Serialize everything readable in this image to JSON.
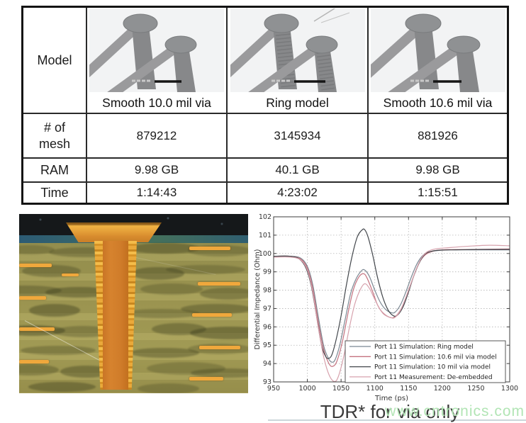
{
  "table": {
    "row_labels": {
      "model": "Model",
      "mesh": "# of\nmesh",
      "ram": "RAM",
      "time": "Time"
    },
    "columns": [
      {
        "caption": "Smooth 10.0 mil via",
        "mesh": "879212",
        "ram": "9.98 GB",
        "time": "1:14:43"
      },
      {
        "caption": "Ring model",
        "mesh": "3145934",
        "ram": "40.1 GB",
        "time": "4:23:02"
      },
      {
        "caption": "Smooth 10.6 mil via",
        "mesh": "881926",
        "ram": "9.98 GB",
        "time": "1:15:51"
      }
    ]
  },
  "photo": {
    "board_color": "#97914f",
    "copper_color": "#d07c2a",
    "plating_color": "#edb23f",
    "top_band_color": "#16181b",
    "blue_layer_color": "#386072"
  },
  "chart_data": {
    "type": "line",
    "title": "",
    "xlabel": "Time (ps)",
    "ylabel": "Differential Impedance (Ohm)",
    "xlim": [
      950,
      1300
    ],
    "ylim": [
      93,
      102
    ],
    "xticks": [
      950,
      1000,
      1050,
      1100,
      1150,
      1200,
      1250,
      1300
    ],
    "yticks": [
      93,
      94,
      95,
      96,
      97,
      98,
      99,
      100,
      101,
      102
    ],
    "grid": true,
    "legend_position": "lower right",
    "series": [
      {
        "name": "Port 11 Simulation: Ring model",
        "color": "#7b8893",
        "points": [
          [
            950,
            99.85
          ],
          [
            975,
            99.85
          ],
          [
            990,
            99.75
          ],
          [
            1000,
            99.3
          ],
          [
            1008,
            98.3
          ],
          [
            1016,
            96.6
          ],
          [
            1024,
            95.0
          ],
          [
            1031,
            94.3
          ],
          [
            1036,
            94.08
          ],
          [
            1041,
            94.2
          ],
          [
            1048,
            95.0
          ],
          [
            1056,
            96.4
          ],
          [
            1064,
            97.8
          ],
          [
            1072,
            98.6
          ],
          [
            1080,
            99.05
          ],
          [
            1085,
            99.1
          ],
          [
            1092,
            98.75
          ],
          [
            1100,
            98.0
          ],
          [
            1108,
            97.35
          ],
          [
            1116,
            96.95
          ],
          [
            1124,
            96.78
          ],
          [
            1130,
            96.8
          ],
          [
            1138,
            97.2
          ],
          [
            1146,
            97.9
          ],
          [
            1154,
            98.7
          ],
          [
            1162,
            99.4
          ],
          [
            1170,
            99.85
          ],
          [
            1178,
            100.05
          ],
          [
            1190,
            100.15
          ],
          [
            1210,
            100.2
          ],
          [
            1240,
            100.2
          ],
          [
            1270,
            100.2
          ],
          [
            1300,
            100.2
          ]
        ]
      },
      {
        "name": "Port 11 Simulation: 10.6 mil via model",
        "color": "#c4727f",
        "points": [
          [
            950,
            99.85
          ],
          [
            975,
            99.85
          ],
          [
            990,
            99.7
          ],
          [
            1000,
            99.2
          ],
          [
            1008,
            98.1
          ],
          [
            1016,
            96.3
          ],
          [
            1024,
            94.8
          ],
          [
            1032,
            94.0
          ],
          [
            1038,
            93.85
          ],
          [
            1044,
            94.15
          ],
          [
            1052,
            95.2
          ],
          [
            1060,
            96.7
          ],
          [
            1068,
            98.0
          ],
          [
            1076,
            98.7
          ],
          [
            1083,
            98.9
          ],
          [
            1088,
            98.7
          ],
          [
            1096,
            98.0
          ],
          [
            1104,
            97.2
          ],
          [
            1112,
            96.75
          ],
          [
            1120,
            96.55
          ],
          [
            1127,
            96.5
          ],
          [
            1134,
            96.7
          ],
          [
            1142,
            97.2
          ],
          [
            1150,
            98.0
          ],
          [
            1158,
            98.8
          ],
          [
            1166,
            99.5
          ],
          [
            1174,
            99.9
          ],
          [
            1184,
            100.1
          ],
          [
            1200,
            100.2
          ],
          [
            1240,
            100.22
          ],
          [
            1300,
            100.25
          ]
        ]
      },
      {
        "name": "Port 11 Simulation: 10 mil via model",
        "color": "#42464b",
        "points": [
          [
            950,
            99.85
          ],
          [
            975,
            99.85
          ],
          [
            988,
            99.7
          ],
          [
            998,
            99.2
          ],
          [
            1006,
            98.2
          ],
          [
            1014,
            96.5
          ],
          [
            1021,
            95.0
          ],
          [
            1027,
            94.4
          ],
          [
            1031,
            94.28
          ],
          [
            1036,
            94.45
          ],
          [
            1042,
            95.2
          ],
          [
            1050,
            96.6
          ],
          [
            1058,
            98.3
          ],
          [
            1066,
            99.8
          ],
          [
            1074,
            100.9
          ],
          [
            1081,
            101.28
          ],
          [
            1085,
            101.3
          ],
          [
            1090,
            100.9
          ],
          [
            1097,
            99.9
          ],
          [
            1104,
            98.7
          ],
          [
            1112,
            97.6
          ],
          [
            1120,
            96.9
          ],
          [
            1128,
            96.6
          ],
          [
            1134,
            96.65
          ],
          [
            1142,
            97.1
          ],
          [
            1150,
            97.9
          ],
          [
            1158,
            98.8
          ],
          [
            1166,
            99.5
          ],
          [
            1174,
            99.95
          ],
          [
            1182,
            100.1
          ],
          [
            1195,
            100.18
          ],
          [
            1220,
            100.2
          ],
          [
            1260,
            100.22
          ],
          [
            1300,
            100.22
          ]
        ]
      },
      {
        "name": "Port 11 Measurement: De-embedded",
        "color": "#d7a2ad",
        "points": [
          [
            950,
            99.8
          ],
          [
            975,
            99.8
          ],
          [
            990,
            99.65
          ],
          [
            1000,
            99.1
          ],
          [
            1008,
            97.9
          ],
          [
            1016,
            96.0
          ],
          [
            1024,
            94.4
          ],
          [
            1032,
            93.4
          ],
          [
            1040,
            93.02
          ],
          [
            1046,
            93.3
          ],
          [
            1054,
            94.4
          ],
          [
            1062,
            95.9
          ],
          [
            1070,
            97.2
          ],
          [
            1078,
            98.0
          ],
          [
            1085,
            98.35
          ],
          [
            1092,
            98.1
          ],
          [
            1100,
            97.5
          ],
          [
            1108,
            96.95
          ],
          [
            1116,
            96.65
          ],
          [
            1124,
            96.5
          ],
          [
            1130,
            96.52
          ],
          [
            1138,
            96.9
          ],
          [
            1146,
            97.6
          ],
          [
            1154,
            98.4
          ],
          [
            1162,
            99.2
          ],
          [
            1170,
            99.8
          ],
          [
            1178,
            100.1
          ],
          [
            1190,
            100.25
          ],
          [
            1210,
            100.32
          ],
          [
            1240,
            100.4
          ],
          [
            1270,
            100.45
          ],
          [
            1300,
            100.42
          ]
        ]
      }
    ]
  },
  "caption": "TDR* for via only",
  "watermark": "www.cntronics.com"
}
